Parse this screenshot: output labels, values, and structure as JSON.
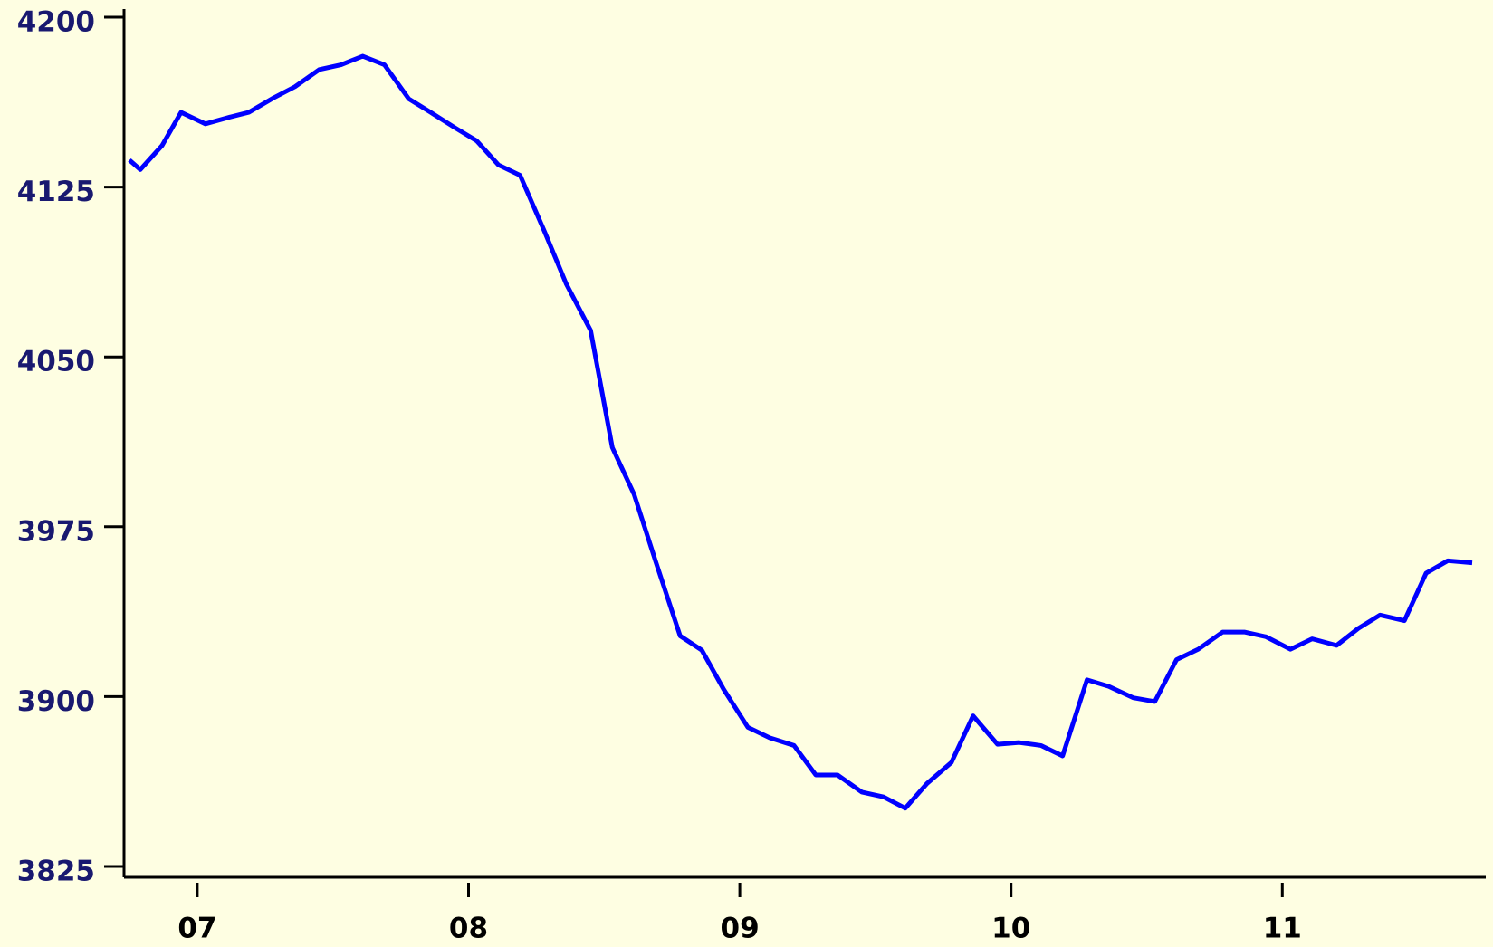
{
  "chart_data": {
    "type": "line",
    "x": [
      6.75,
      6.79,
      6.87,
      6.94,
      7.03,
      7.12,
      7.19,
      7.28,
      7.36,
      7.45,
      7.53,
      7.61,
      7.69,
      7.78,
      7.86,
      7.95,
      8.03,
      8.11,
      8.19,
      8.28,
      8.36,
      8.45,
      8.53,
      8.61,
      8.69,
      8.78,
      8.86,
      8.94,
      9.03,
      9.11,
      9.2,
      9.28,
      9.36,
      9.45,
      9.53,
      9.61,
      9.69,
      9.78,
      9.86,
      9.95,
      10.03,
      10.11,
      10.19,
      10.28,
      10.36,
      10.45,
      10.53,
      10.61,
      10.69,
      10.78,
      10.86,
      10.94,
      11.03,
      11.11,
      11.2,
      11.28,
      11.36,
      11.45,
      11.53,
      11.61,
      11.7
    ],
    "series": [
      {
        "color": "#0000ff",
        "values": [
          4136.9,
          4132.7,
          4143.3,
          4158,
          4152.9,
          4155.9,
          4158,
          4164.3,
          4169.3,
          4176.9,
          4179,
          4182.8,
          4179,
          4163.9,
          4158,
          4151.2,
          4145.4,
          4134.8,
          4130.2,
          4105.4,
          4082.3,
          4061.7,
          4010,
          3989.4,
          3959.6,
          3926.8,
          3920.5,
          3903.3,
          3886.4,
          3881.8,
          3878.4,
          3865.4,
          3865.4,
          3857.8,
          3855.7,
          3850.7,
          3861.6,
          3870.9,
          3891.5,
          3878.9,
          3879.7,
          3878.4,
          3873.8,
          3907.4,
          3904.5,
          3899.5,
          3897.8,
          3916.3,
          3920.9,
          3928.5,
          3928.5,
          3926.4,
          3920.9,
          3925.5,
          3922.6,
          3930.1,
          3936,
          3933.5,
          3954.5,
          3960,
          3959.1
        ]
      }
    ],
    "xlim": [
      6.73,
      11.75
    ],
    "xticks": [
      {
        "value": 7,
        "label": "07"
      },
      {
        "value": 8,
        "label": "08"
      },
      {
        "value": 9,
        "label": "09"
      },
      {
        "value": 10,
        "label": "10"
      },
      {
        "value": 11,
        "label": "11"
      }
    ],
    "ylim": [
      3825,
      4200
    ],
    "yticks": [
      4200,
      4125,
      4050,
      3975,
      3900,
      3825
    ]
  }
}
